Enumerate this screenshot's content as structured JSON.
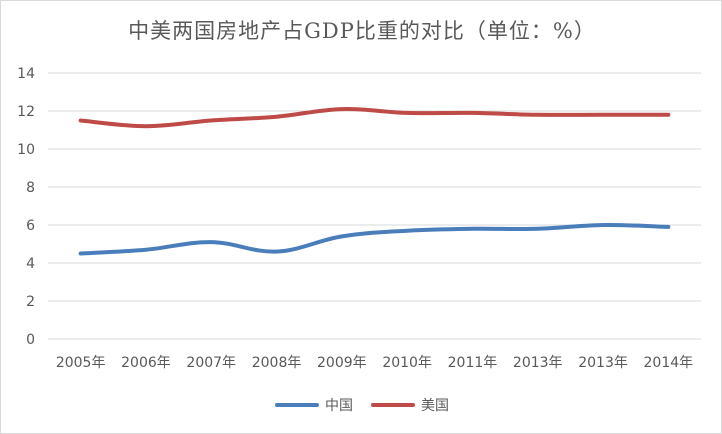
{
  "chart_data": {
    "type": "line",
    "title": "中美两国房地产占GDP比重的对比（单位：%）",
    "xlabel": "",
    "ylabel": "",
    "categories": [
      "2005年",
      "2006年",
      "2007年",
      "2008年",
      "2009年",
      "2010年",
      "2011年",
      "2013年",
      "2013年",
      "2014年"
    ],
    "ylim": [
      0,
      14
    ],
    "yticks": [
      0,
      2,
      4,
      6,
      8,
      10,
      12,
      14
    ],
    "grid": true,
    "legend_position": "bottom",
    "series": [
      {
        "name": "中国",
        "color": "#4a7ebb",
        "values": [
          4.5,
          4.7,
          5.1,
          4.6,
          5.4,
          5.7,
          5.8,
          5.8,
          6.0,
          5.9
        ]
      },
      {
        "name": "美国",
        "color": "#be4b48",
        "values": [
          11.5,
          11.2,
          11.5,
          11.7,
          12.1,
          11.9,
          11.9,
          11.8,
          11.8,
          11.8
        ]
      }
    ]
  }
}
